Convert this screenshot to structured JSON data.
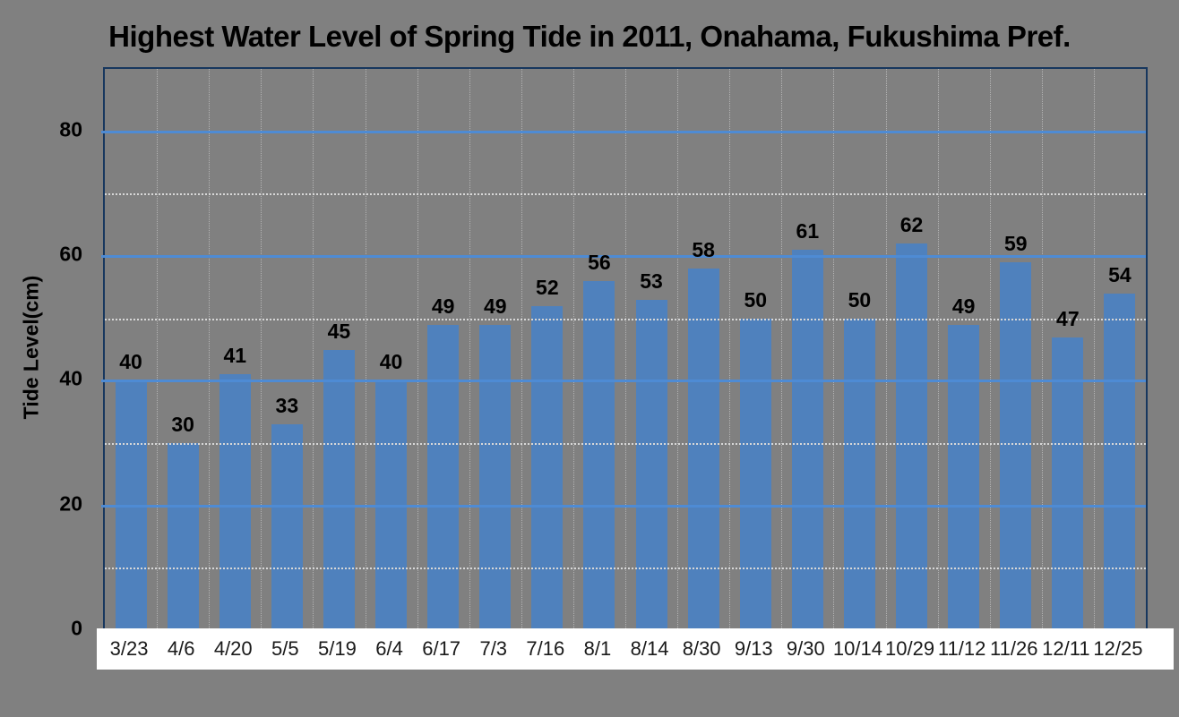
{
  "chart_data": {
    "type": "bar",
    "title": "Highest Water Level of Spring Tide in 2011, Onahama, Fukushima Pref.",
    "xlabel": "",
    "ylabel": "Tide Level(cm)",
    "categories": [
      "3/23",
      "4/6",
      "4/20",
      "5/5",
      "5/19",
      "6/4",
      "6/17",
      "7/3",
      "7/16",
      "8/1",
      "8/14",
      "8/30",
      "9/13",
      "9/30",
      "10/14",
      "10/29",
      "11/12",
      "11/26",
      "12/11",
      "12/25"
    ],
    "values": [
      40,
      30,
      41,
      33,
      45,
      40,
      49,
      49,
      52,
      56,
      53,
      58,
      50,
      61,
      50,
      62,
      49,
      59,
      47,
      54
    ],
    "ylim": [
      0,
      90
    ],
    "yticks_major": [
      0,
      20,
      40,
      60,
      80
    ],
    "yticks_minor": [
      10,
      30,
      50,
      70
    ],
    "bar_value_labels_shown": true,
    "legend": "none",
    "grid": {
      "major_horizontal": "solid",
      "minor_horizontal": "dotted",
      "vertical_category_separators": "dotted"
    },
    "colors": {
      "page_background": "#808080",
      "plot_background": "#808080",
      "bar": "#4F81BD",
      "major_gridline": "#4E8BD4",
      "minor_gridline": "#D8D8D8",
      "vertical_gridline": "#DCDCDC",
      "plot_border": "#17375E",
      "title_text": "#000000",
      "value_label_text": "#000000",
      "y_tick_text": "#000000",
      "x_tick_text": "#1A1A1A",
      "x_strip_background": "#FFFFFF"
    }
  }
}
